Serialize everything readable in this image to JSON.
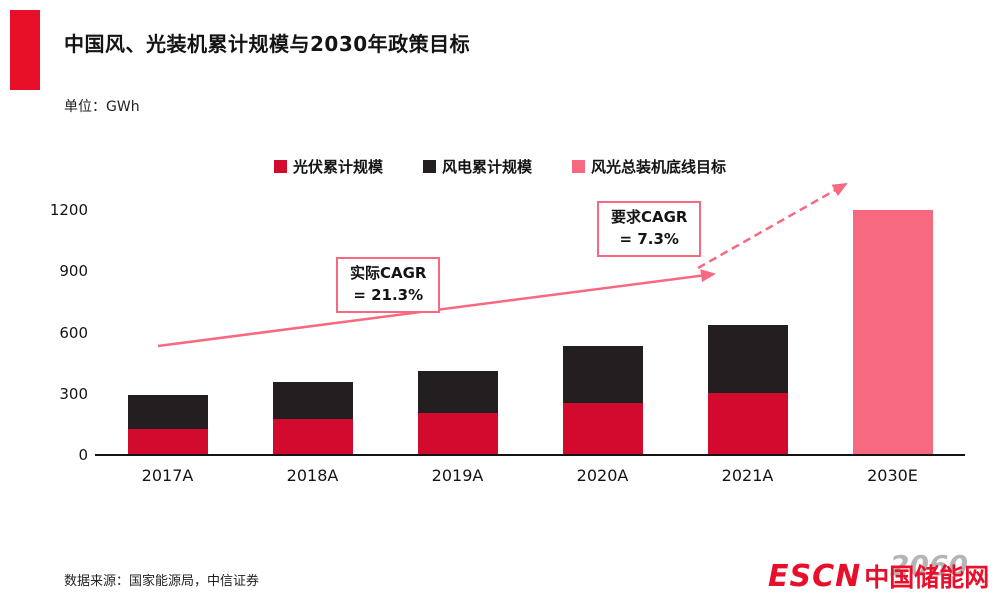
{
  "header": {
    "title": "中国风、光装机累计规模与2030年政策目标",
    "unit_label": "单位：GWh"
  },
  "colors": {
    "accent_red": "#e80f2a",
    "solar_red": "#d20a2e",
    "wind_black": "#231f20",
    "target_pink": "#f7697f",
    "axis_black": "#141414"
  },
  "legend": [
    {
      "label": "光伏累计规模",
      "color": "#d20a2e"
    },
    {
      "label": "风电累计规模",
      "color": "#231f20"
    },
    {
      "label": "风光总装机底线目标",
      "color": "#f7697f"
    }
  ],
  "chart_data": {
    "type": "bar",
    "stacked": true,
    "title": "中国风、光装机累计规模与2030年政策目标",
    "ylabel": "GWh",
    "categories": [
      "2017A",
      "2018A",
      "2019A",
      "2020A",
      "2021A",
      "2030E"
    ],
    "series": [
      {
        "name": "光伏累计规模",
        "color": "#d20a2e",
        "values": [
          130,
          175,
          204,
          253,
          306,
          0
        ]
      },
      {
        "name": "风电累计规模",
        "color": "#231f20",
        "values": [
          164,
          184,
          210,
          282,
          329,
          0
        ]
      },
      {
        "name": "风光总装机底线目标",
        "color": "#f7697f",
        "values": [
          0,
          0,
          0,
          0,
          0,
          1200
        ]
      }
    ],
    "y_ticks": [
      0,
      300,
      600,
      900,
      1200
    ],
    "ylim": [
      0,
      1200
    ],
    "grid": false,
    "legend_position": "top",
    "annotations": [
      {
        "line1": "实际CAGR",
        "line2": "= 21.3%"
      },
      {
        "line1": "要求CAGR",
        "line2": "= 7.3%"
      }
    ]
  },
  "footer": {
    "source": "数据来源：国家能源局，中信证券",
    "logo_escn": "ESCN",
    "logo_name": "中国储能网",
    "watermark": "2060"
  }
}
